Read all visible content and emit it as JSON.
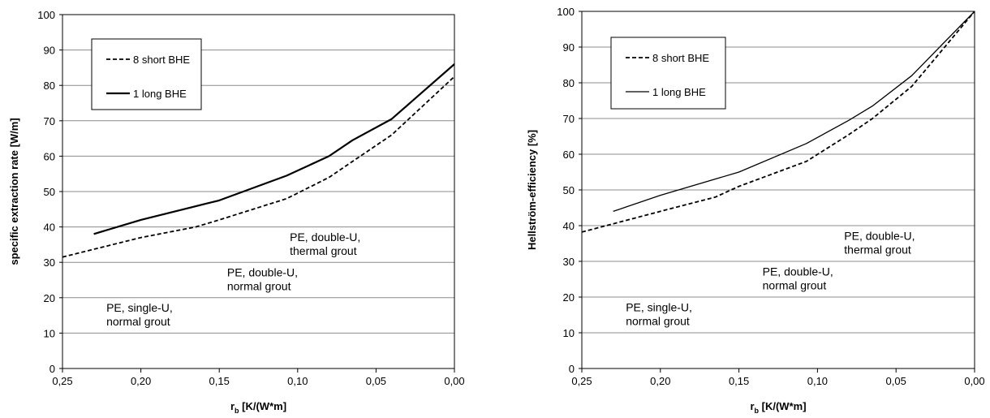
{
  "chart_data": [
    {
      "type": "line",
      "xlabel": "r",
      "xlabel_sub": "b",
      "xlabel_unit": " [K/(W*m]",
      "ylabel": "specific extraction rate [W/m]",
      "xlim": [
        0.25,
        0.0
      ],
      "ylim": [
        0,
        100
      ],
      "x_reversed": true,
      "x_ticks": [
        "0,25",
        "0,20",
        "0,15",
        "0,10",
        "0,05",
        "0,00"
      ],
      "y_ticks": [
        "0",
        "10",
        "20",
        "30",
        "40",
        "50",
        "60",
        "70",
        "80",
        "90",
        "100"
      ],
      "grid": true,
      "legend": "top-left",
      "series": [
        {
          "name": "8 short BHE",
          "style": "dashed",
          "x": [
            0.25,
            0.2,
            0.165,
            0.15,
            0.107,
            0.08,
            0.065,
            0.04,
            0.0
          ],
          "y": [
            31.5,
            37,
            40,
            42,
            48,
            54,
            58.5,
            66,
            82.5
          ]
        },
        {
          "name": "1 long BHE",
          "style": "solid-thick",
          "x": [
            0.23,
            0.2,
            0.15,
            0.107,
            0.08,
            0.065,
            0.04,
            0.0
          ],
          "y": [
            38,
            42,
            47.5,
            54.5,
            60,
            64.5,
            70.5,
            86
          ]
        }
      ],
      "annotations": [
        {
          "lines": [
            "PE, double-U,",
            "thermal grout"
          ],
          "x": 0.105,
          "y": 36
        },
        {
          "lines": [
            "PE, double-U,",
            "normal grout"
          ],
          "x": 0.145,
          "y": 26
        },
        {
          "lines": [
            "PE, single-U,",
            "normal grout"
          ],
          "x": 0.222,
          "y": 16
        }
      ]
    },
    {
      "type": "line",
      "xlabel": "r",
      "xlabel_sub": "b",
      "xlabel_unit": " [K/(W*m]",
      "ylabel": "Hellström-efficiency [%]",
      "xlim": [
        0.25,
        0.0
      ],
      "ylim": [
        0,
        100
      ],
      "x_reversed": true,
      "x_ticks": [
        "0,25",
        "0,20",
        "0,15",
        "0,10",
        "0,05",
        "0,00"
      ],
      "y_ticks": [
        "0",
        "10",
        "20",
        "30",
        "40",
        "50",
        "60",
        "70",
        "80",
        "90",
        "100"
      ],
      "grid": true,
      "legend": "top-left",
      "series": [
        {
          "name": "8 short BHE",
          "style": "dashed",
          "x": [
            0.25,
            0.2,
            0.165,
            0.15,
            0.107,
            0.08,
            0.065,
            0.04,
            0.0
          ],
          "y": [
            38.2,
            44,
            48,
            51,
            58,
            65.5,
            70,
            79,
            100
          ]
        },
        {
          "name": "1 long BHE",
          "style": "solid-thin",
          "x": [
            0.23,
            0.2,
            0.15,
            0.107,
            0.08,
            0.065,
            0.04,
            0.0
          ],
          "y": [
            44,
            48.5,
            55,
            63,
            69.5,
            73.5,
            82,
            100
          ]
        }
      ],
      "annotations": [
        {
          "lines": [
            "PE, double-U,",
            "thermal grout"
          ],
          "x": 0.083,
          "y": 36
        },
        {
          "lines": [
            "PE, double-U,",
            "normal grout"
          ],
          "x": 0.135,
          "y": 26
        },
        {
          "lines": [
            "PE, single-U,",
            "normal grout"
          ],
          "x": 0.222,
          "y": 16
        }
      ]
    }
  ]
}
